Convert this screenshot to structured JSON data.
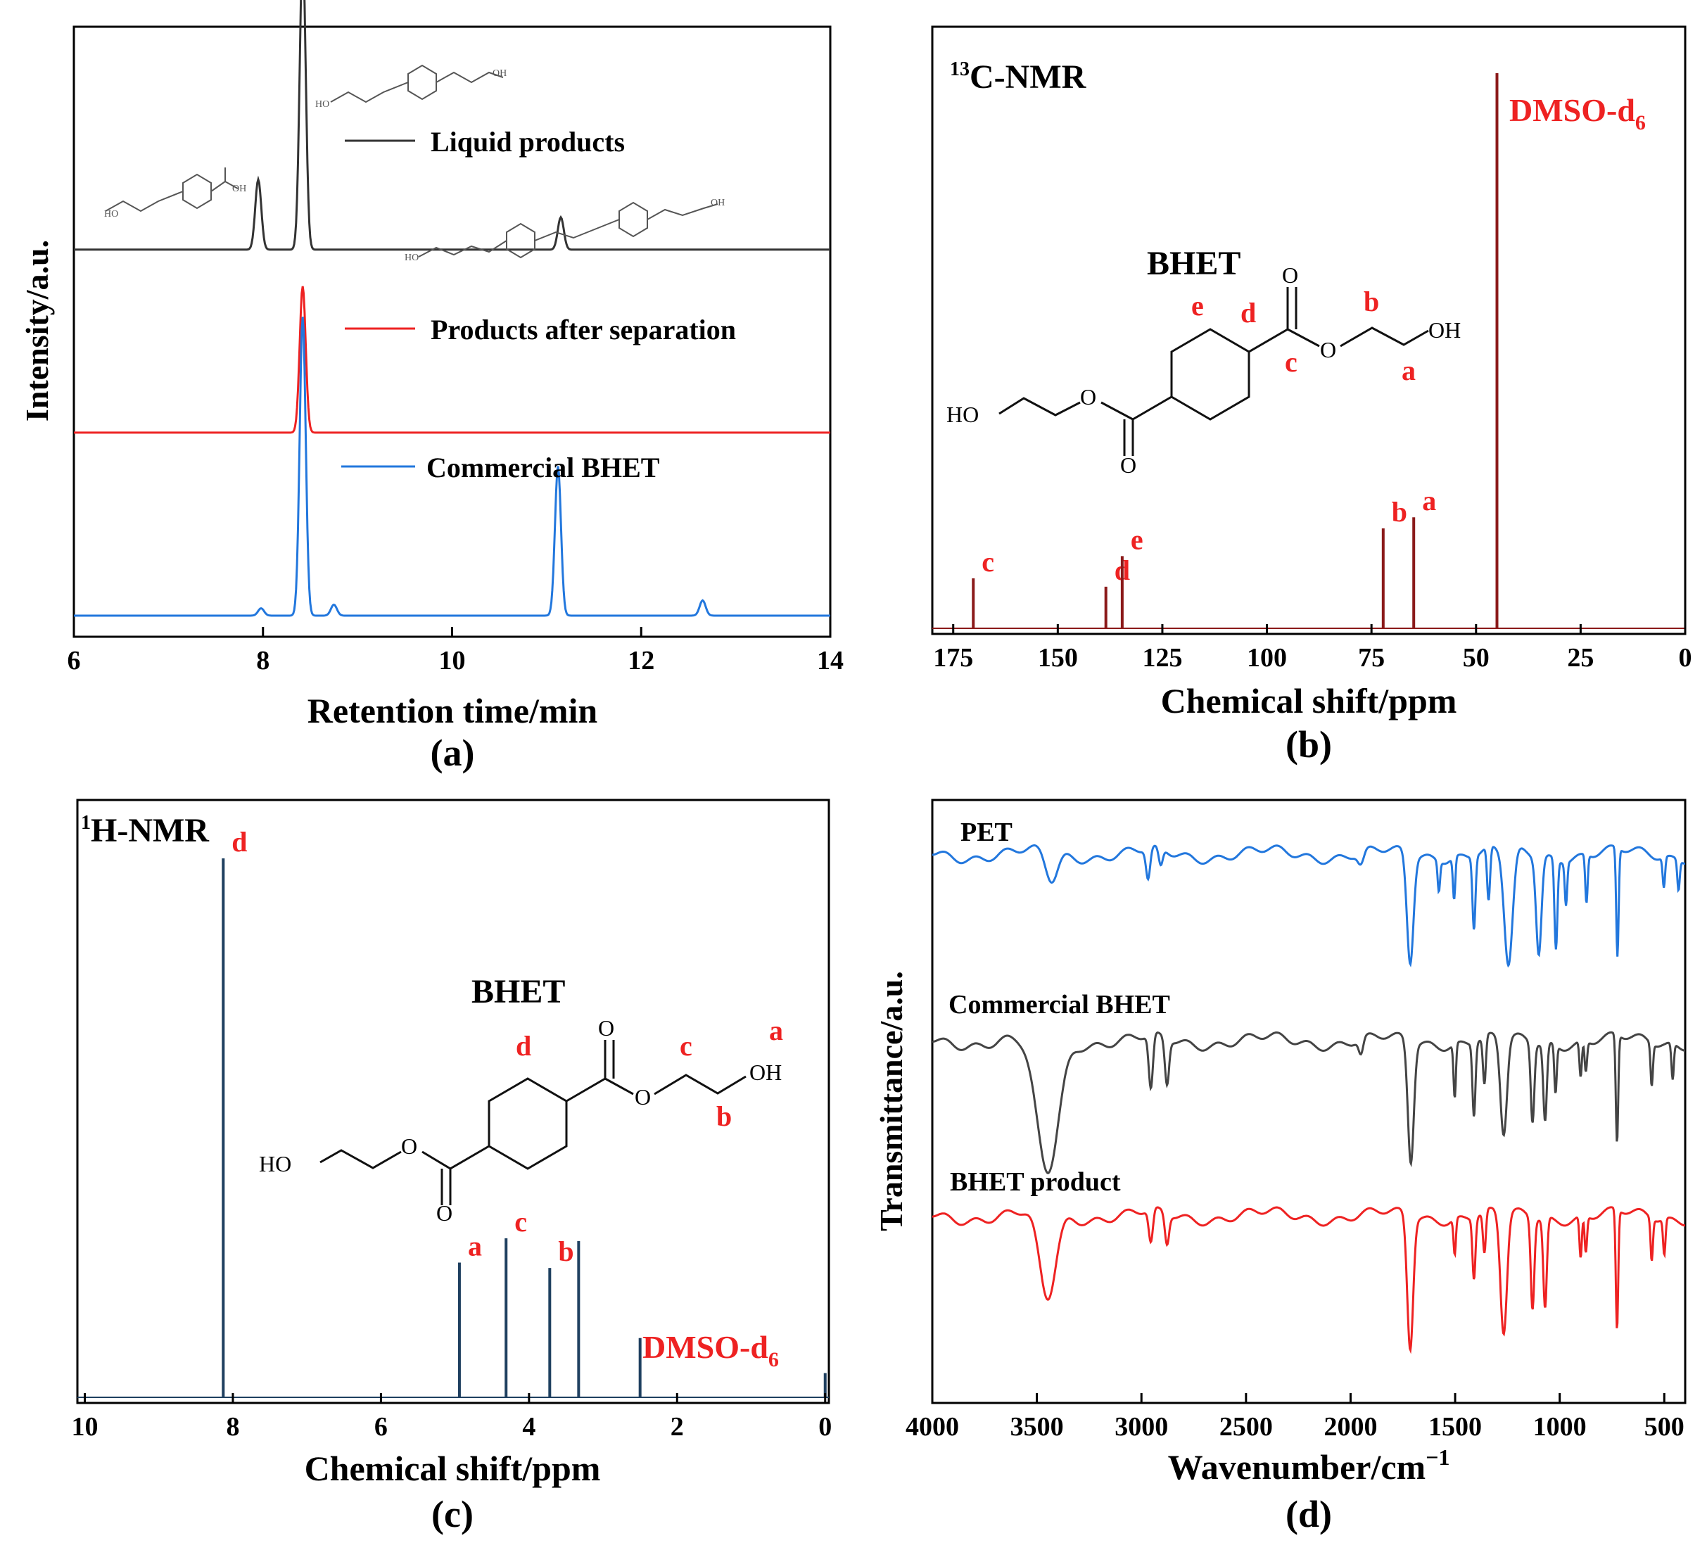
{
  "colors": {
    "black": "#333333",
    "red": "#ee2222",
    "blue": "#2277dd",
    "darkred": "#8b1a1a",
    "navy": "#1f4060",
    "gray": "#444444"
  },
  "chart_data": [
    {
      "id": "a",
      "type": "line",
      "panel_label": "(a)",
      "xlabel": "Retention time/min",
      "ylabel": "Intensity/a.u.",
      "xlim": [
        6,
        14
      ],
      "xticks": [
        "6",
        "8",
        "10",
        "12",
        "14"
      ],
      "series": [
        {
          "name": "Liquid products",
          "color_key": "black",
          "offset": 0.6,
          "peaks": [
            {
              "x": 7.95,
              "h": 0.115
            },
            {
              "x": 8.42,
              "h": 0.49
            },
            {
              "x": 11.15,
              "h": 0.053
            }
          ]
        },
        {
          "name": "Products after separation",
          "color_key": "red",
          "offset": 0.3,
          "peaks": [
            {
              "x": 8.42,
              "h": 0.24
            }
          ]
        },
        {
          "name": "Commercial BHET",
          "color_key": "blue",
          "offset": 0.0,
          "peaks": [
            {
              "x": 7.98,
              "h": 0.012
            },
            {
              "x": 8.42,
              "h": 0.49
            },
            {
              "x": 8.75,
              "h": 0.018
            },
            {
              "x": 11.12,
              "h": 0.245
            },
            {
              "x": 12.65,
              "h": 0.025
            }
          ]
        }
      ],
      "structure_labels": [
        "HO",
        "OH",
        "HO",
        "OH",
        "HO",
        "OH"
      ]
    },
    {
      "id": "b",
      "type": "line",
      "panel_label": "(b)",
      "title": "13C-NMR",
      "title_sup": "13",
      "title_main": "C-NMR",
      "xlabel": "Chemical shift/ppm",
      "xlim": [
        180,
        0
      ],
      "xticks": [
        "175",
        "150",
        "125",
        "100",
        "75",
        "50",
        "25",
        "0"
      ],
      "compound": "BHET",
      "solvent_label": "DMSO-d",
      "solvent_sub": "6",
      "peaks": [
        {
          "x": 170.2,
          "h": 0.09,
          "label": "c"
        },
        {
          "x": 138.5,
          "h": 0.075,
          "label": "d"
        },
        {
          "x": 134.6,
          "h": 0.13,
          "label": "e"
        },
        {
          "x": 72.2,
          "h": 0.18,
          "label": "b"
        },
        {
          "x": 64.9,
          "h": 0.2,
          "label": "a"
        },
        {
          "x": 45.0,
          "h": 1.0,
          "label": ""
        }
      ],
      "structure_letters": [
        "e",
        "d",
        "c",
        "b",
        "a"
      ],
      "atoms": [
        "O",
        "O",
        "OH",
        "HO",
        "O",
        "O"
      ]
    },
    {
      "id": "c",
      "type": "line",
      "panel_label": "(c)",
      "title": "1H-NMR",
      "title_sup": "1",
      "title_main": "H-NMR",
      "xlabel": "Chemical shift/ppm",
      "xlim": [
        10.1,
        -0.05
      ],
      "xticks": [
        "10",
        "8",
        "6",
        "4",
        "2",
        "0"
      ],
      "compound": "BHET",
      "solvent_label": "DMSO-d",
      "solvent_sub": "6",
      "peaks": [
        {
          "x": 8.13,
          "h": 1.0,
          "label": "d"
        },
        {
          "x": 4.94,
          "h": 0.25,
          "label": "a"
        },
        {
          "x": 4.31,
          "h": 0.295,
          "label": "c"
        },
        {
          "x": 3.72,
          "h": 0.24,
          "label": "b"
        },
        {
          "x": 3.33,
          "h": 0.29,
          "label": ""
        },
        {
          "x": 2.5,
          "h": 0.11,
          "label": ""
        },
        {
          "x": 0.0,
          "h": 0.045,
          "label": ""
        }
      ],
      "structure_letters": [
        "d",
        "c",
        "a",
        "b"
      ],
      "atoms": [
        "O",
        "O",
        "OH",
        "HO",
        "O",
        "O"
      ]
    },
    {
      "id": "d",
      "type": "line",
      "panel_label": "(d)",
      "xlabel": "Wavenumber/cm",
      "xlabel_sup": "−1",
      "ylabel": "Transmittance/a.u.",
      "xlim": [
        4000,
        400
      ],
      "xticks": [
        "4000",
        "3500",
        "3000",
        "2500",
        "2000",
        "1500",
        "1000",
        "500"
      ],
      "series": [
        {
          "name": "PET",
          "color_key": "blue",
          "baseline": 0.91,
          "bands": [
            {
              "x": 3430,
              "d": 0.045,
              "w": 40
            },
            {
              "x": 2968,
              "d": 0.05,
              "w": 14
            },
            {
              "x": 2908,
              "d": 0.03,
              "w": 14
            },
            {
              "x": 1950,
              "d": 0.02,
              "w": 20
            },
            {
              "x": 1715,
              "d": 0.18,
              "w": 22
            },
            {
              "x": 1578,
              "d": 0.05,
              "w": 8
            },
            {
              "x": 1505,
              "d": 0.07,
              "w": 8
            },
            {
              "x": 1410,
              "d": 0.12,
              "w": 10
            },
            {
              "x": 1340,
              "d": 0.09,
              "w": 10
            },
            {
              "x": 1245,
              "d": 0.19,
              "w": 28
            },
            {
              "x": 1100,
              "d": 0.16,
              "w": 18
            },
            {
              "x": 1018,
              "d": 0.15,
              "w": 10
            },
            {
              "x": 970,
              "d": 0.07,
              "w": 8
            },
            {
              "x": 872,
              "d": 0.08,
              "w": 8
            },
            {
              "x": 724,
              "d": 0.18,
              "w": 8
            },
            {
              "x": 502,
              "d": 0.05,
              "w": 8
            },
            {
              "x": 432,
              "d": 0.05,
              "w": 8
            }
          ]
        },
        {
          "name": "Commercial BHET",
          "color_key": "gray",
          "baseline": 0.6,
          "bands": [
            {
              "x": 3450,
              "d": 0.22,
              "w": 75
            },
            {
              "x": 2955,
              "d": 0.09,
              "w": 14
            },
            {
              "x": 2878,
              "d": 0.075,
              "w": 14
            },
            {
              "x": 1950,
              "d": 0.025,
              "w": 15
            },
            {
              "x": 1712,
              "d": 0.2,
              "w": 20
            },
            {
              "x": 1502,
              "d": 0.09,
              "w": 8
            },
            {
              "x": 1410,
              "d": 0.12,
              "w": 10
            },
            {
              "x": 1360,
              "d": 0.08,
              "w": 10
            },
            {
              "x": 1268,
              "d": 0.16,
              "w": 22
            },
            {
              "x": 1130,
              "d": 0.13,
              "w": 12
            },
            {
              "x": 1070,
              "d": 0.13,
              "w": 12
            },
            {
              "x": 1020,
              "d": 0.08,
              "w": 8
            },
            {
              "x": 900,
              "d": 0.06,
              "w": 8
            },
            {
              "x": 875,
              "d": 0.05,
              "w": 8
            },
            {
              "x": 726,
              "d": 0.18,
              "w": 8
            },
            {
              "x": 560,
              "d": 0.07,
              "w": 8
            },
            {
              "x": 460,
              "d": 0.06,
              "w": 8
            }
          ]
        },
        {
          "name": "BHET product",
          "color_key": "red",
          "baseline": 0.31,
          "bands": [
            {
              "x": 3450,
              "d": 0.14,
              "w": 55
            },
            {
              "x": 2955,
              "d": 0.055,
              "w": 14
            },
            {
              "x": 2878,
              "d": 0.05,
              "w": 14
            },
            {
              "x": 1715,
              "d": 0.22,
              "w": 20
            },
            {
              "x": 1502,
              "d": 0.06,
              "w": 8
            },
            {
              "x": 1410,
              "d": 0.1,
              "w": 10
            },
            {
              "x": 1360,
              "d": 0.07,
              "w": 10
            },
            {
              "x": 1268,
              "d": 0.2,
              "w": 22
            },
            {
              "x": 1130,
              "d": 0.15,
              "w": 12
            },
            {
              "x": 1070,
              "d": 0.15,
              "w": 12
            },
            {
              "x": 900,
              "d": 0.07,
              "w": 8
            },
            {
              "x": 875,
              "d": 0.06,
              "w": 8
            },
            {
              "x": 726,
              "d": 0.2,
              "w": 8
            },
            {
              "x": 560,
              "d": 0.07,
              "w": 8
            },
            {
              "x": 500,
              "d": 0.06,
              "w": 8
            }
          ]
        }
      ]
    }
  ]
}
